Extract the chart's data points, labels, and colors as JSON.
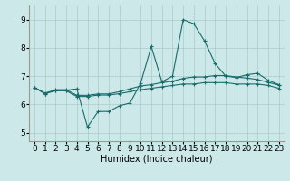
{
  "background_color": "#cce8e8",
  "grid_color": "#aacccc",
  "line_color": "#1a6b6b",
  "marker": "+",
  "xlabel": "Humidex (Indice chaleur)",
  "xlabel_fontsize": 7,
  "tick_fontsize": 6.5,
  "ylim": [
    4.7,
    9.5
  ],
  "xlim": [
    -0.5,
    23.5
  ],
  "yticks": [
    5,
    6,
    7,
    8,
    9
  ],
  "xticks": [
    0,
    1,
    2,
    3,
    4,
    5,
    6,
    7,
    8,
    9,
    10,
    11,
    12,
    13,
    14,
    15,
    16,
    17,
    18,
    19,
    20,
    21,
    22,
    23
  ],
  "series": [
    [
      6.6,
      6.4,
      6.5,
      6.5,
      6.55,
      5.2,
      5.75,
      5.75,
      5.95,
      6.05,
      6.75,
      8.05,
      6.8,
      7.0,
      9.0,
      8.85,
      8.25,
      7.45,
      7.0,
      6.95,
      7.05,
      7.1,
      6.85,
      6.7
    ],
    [
      6.6,
      6.38,
      6.52,
      6.52,
      6.32,
      6.32,
      6.37,
      6.37,
      6.45,
      6.55,
      6.65,
      6.7,
      6.77,
      6.82,
      6.92,
      6.97,
      6.97,
      7.02,
      7.02,
      6.97,
      6.93,
      6.88,
      6.78,
      6.68
    ],
    [
      6.6,
      6.38,
      6.48,
      6.48,
      6.28,
      6.28,
      6.33,
      6.33,
      6.38,
      6.45,
      6.52,
      6.57,
      6.62,
      6.67,
      6.72,
      6.72,
      6.77,
      6.77,
      6.77,
      6.72,
      6.72,
      6.72,
      6.67,
      6.57
    ]
  ]
}
